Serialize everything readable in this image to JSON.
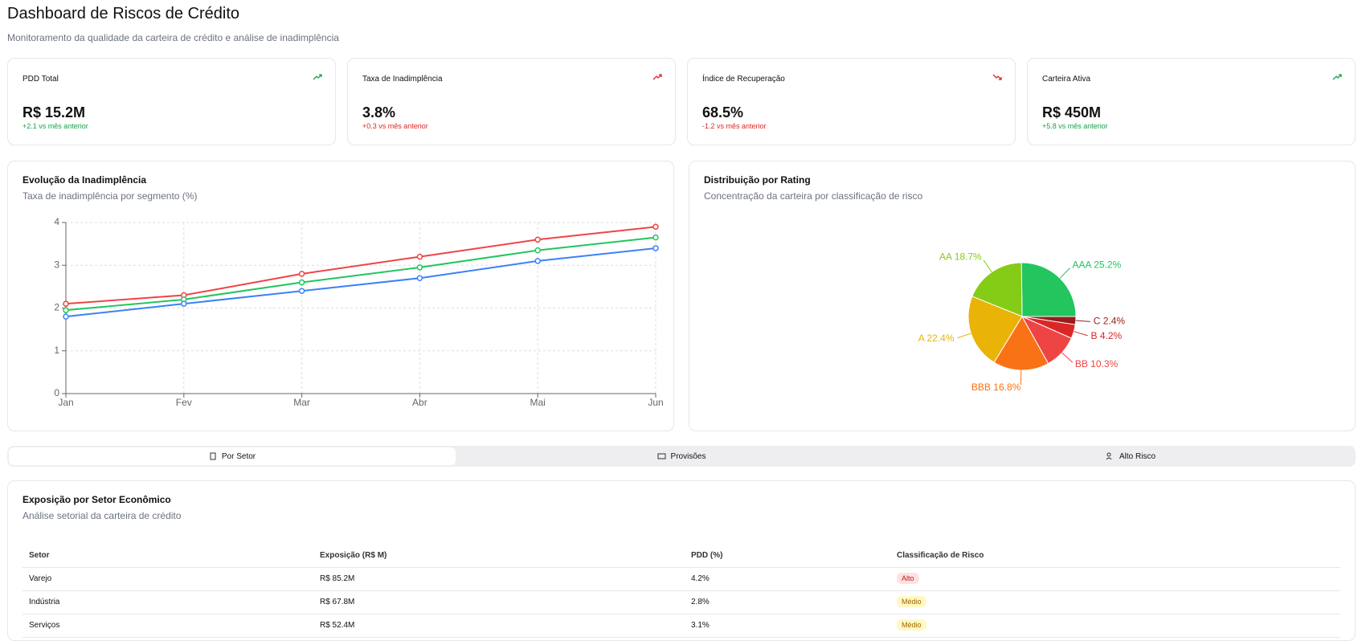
{
  "header": {
    "title": "Dashboard de Riscos de Crédito",
    "subtitle": "Monitoramento da qualidade da carteira de crédito e análise de inadimplência"
  },
  "kpis": [
    {
      "title": "PDD Total",
      "value": "R$ 15.2M",
      "note": "+2.1 vs mês anterior"
    },
    {
      "title": "Taxa de Inadimplência",
      "value": "3.8%",
      "note": "+0.3 vs mês anterior"
    },
    {
      "title": "Índice de Recuperação",
      "value": "68.5%",
      "note": "-1.2 vs mês anterior"
    },
    {
      "title": "Carteira Ativa",
      "value": "R$ 450M",
      "note": "+5.8 vs mês anterior"
    }
  ],
  "chart_data": [
    {
      "type": "line",
      "title": "Evolução da Inadimplência",
      "subtitle": "Taxa de inadimplência por segmento (%)",
      "categories": [
        "Jan",
        "Fev",
        "Mar",
        "Abr",
        "Mai",
        "Jun"
      ],
      "series": [
        {
          "color": "#ef4444",
          "values": [
            2.1,
            2.3,
            2.8,
            3.2,
            3.6,
            3.9
          ]
        },
        {
          "color": "#22c55e",
          "values": [
            1.95,
            2.2,
            2.6,
            2.95,
            3.35,
            3.65
          ]
        },
        {
          "color": "#3b82f6",
          "values": [
            1.8,
            2.1,
            2.4,
            2.7,
            3.1,
            3.4
          ]
        }
      ],
      "ylim": [
        0,
        4
      ],
      "yticks": [
        0,
        1,
        2,
        3,
        4
      ],
      "grid": true
    },
    {
      "type": "pie",
      "title": "Distribuição por Rating",
      "subtitle": "Concentração da carteira por classificação de risco",
      "categories": [
        "AAA",
        "AA",
        "A",
        "BBB",
        "BB",
        "B",
        "C"
      ],
      "values": [
        25.2,
        18.7,
        22.4,
        16.8,
        10.3,
        4.2,
        2.4
      ],
      "value_labels": [
        "25.2%",
        "18.7%",
        "22.4%",
        "16.8%",
        "10.3%",
        "4.2%",
        "2.4%"
      ],
      "colors": [
        "#22c55e",
        "#84cc16",
        "#eab308",
        "#f97316",
        "#ef4444",
        "#dc2626",
        "#991b1b"
      ]
    }
  ],
  "tabs": [
    "Por Setor",
    "Provisões",
    "Alto Risco"
  ],
  "table": {
    "title": "Exposição por Setor Econômico",
    "subtitle": "Análise setorial da carteira de crédito",
    "headers": [
      "Setor",
      "Exposição (R$ M)",
      "PDD (%)",
      "Classificação de Risco"
    ],
    "rows": [
      [
        "Varejo",
        "R$ 85.2M",
        "4.2%",
        "Alto"
      ],
      [
        "Indústria",
        "R$ 67.8M",
        "2.8%",
        "Médio"
      ],
      [
        "Serviços",
        "R$ 52.4M",
        "3.1%",
        "Médio"
      ]
    ]
  }
}
